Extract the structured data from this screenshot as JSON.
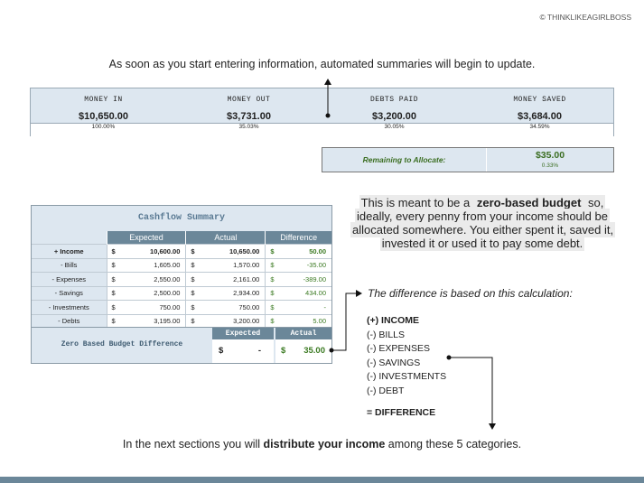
{
  "copyright": "© THINKLIKEAGIRLBOSS",
  "heading": "As soon as you start entering information,  automated summaries will begin to update.",
  "summary": [
    {
      "label": "MONEY IN",
      "amount": "$10,650.00",
      "percent": "100.00%"
    },
    {
      "label": "MONEY OUT",
      "amount": "$3,731.00",
      "percent": "35.03%"
    },
    {
      "label": "DEBTS PAID",
      "amount": "$3,200.00",
      "percent": "30.05%"
    },
    {
      "label": "MONEY SAVED",
      "amount": "$3,684.00",
      "percent": "34.59%"
    }
  ],
  "remaining": {
    "label": "Remaining to Allocate:",
    "amount": "$35.00",
    "percent": "0.33%"
  },
  "cashflow": {
    "title": "Cashflow Summary",
    "currency": "$",
    "headers": [
      "Expected",
      "Actual",
      "Difference"
    ],
    "rows": [
      [
        "+ Income",
        "10,600.00",
        "10,650.00",
        "50.00"
      ],
      [
        "- Bills",
        "1,605.00",
        "1,570.00",
        "-35.00"
      ],
      [
        "- Expenses",
        "2,550.00",
        "2,161.00",
        "-389.00"
      ],
      [
        "- Savings",
        "2,500.00",
        "2,934.00",
        "434.00"
      ],
      [
        "- Investments",
        "750.00",
        "750.00",
        "-"
      ],
      [
        "- Debts",
        "3,195.00",
        "3,200.00",
        "5.00"
      ]
    ]
  },
  "zbb": {
    "label": "Zero Based Budget Difference",
    "headers": [
      "Expected",
      "Actual"
    ],
    "currency": "$",
    "expected": "-",
    "actual": "35.00"
  },
  "paragraph": [
    "This is meant to be a ",
    "zero-based budget",
    " so, ideally, every penny from your income should be allocated somewhere. You either spent it, saved it, invested it or used it to pay some debt."
  ],
  "calculation": {
    "title": "The difference is based on this calculation:",
    "items": [
      "(+) INCOME",
      "(-) BILLS",
      "(-) EXPENSES",
      "(-) SAVINGS",
      "(-) INVESTMENTS",
      "(-) DEBT"
    ],
    "result": "= DIFFERENCE"
  },
  "footer": [
    "In the next sections you will ",
    "distribute your income",
    " among these 5 categories."
  ]
}
